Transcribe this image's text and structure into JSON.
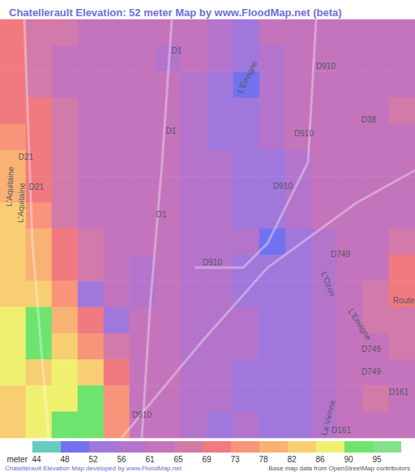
{
  "chart_data": {
    "type": "heatmap",
    "title": "Chatellerault Elevation: 52 meter Map by www.FloodMap.net (beta)",
    "tick_labels": false,
    "cells": [
      [
        70,
        66,
        66,
        62,
        62,
        62,
        62,
        62,
        58,
        53,
        62,
        62,
        62,
        62,
        62,
        62
      ],
      [
        70,
        66,
        62,
        62,
        62,
        62,
        58,
        62,
        58,
        53,
        58,
        62,
        62,
        62,
        62,
        62
      ],
      [
        70,
        66,
        62,
        62,
        62,
        62,
        62,
        58,
        53,
        50,
        58,
        62,
        62,
        62,
        62,
        62
      ],
      [
        70,
        70,
        66,
        62,
        62,
        62,
        62,
        58,
        53,
        53,
        58,
        62,
        62,
        62,
        62,
        66
      ],
      [
        74,
        70,
        66,
        62,
        62,
        62,
        62,
        58,
        53,
        53,
        58,
        62,
        62,
        62,
        62,
        62
      ],
      [
        78,
        70,
        66,
        62,
        62,
        62,
        62,
        58,
        58,
        53,
        53,
        58,
        62,
        62,
        62,
        62
      ],
      [
        79,
        70,
        66,
        62,
        62,
        62,
        62,
        58,
        58,
        53,
        53,
        58,
        62,
        62,
        62,
        62
      ],
      [
        82,
        74,
        66,
        62,
        62,
        62,
        62,
        58,
        58,
        53,
        53,
        58,
        62,
        62,
        62,
        62
      ],
      [
        82,
        78,
        70,
        66,
        62,
        62,
        62,
        58,
        58,
        58,
        50,
        53,
        58,
        62,
        62,
        66
      ],
      [
        82,
        79,
        70,
        66,
        62,
        58,
        62,
        58,
        58,
        53,
        53,
        53,
        58,
        62,
        62,
        70
      ],
      [
        83,
        82,
        74,
        53,
        62,
        58,
        62,
        58,
        58,
        53,
        53,
        53,
        58,
        62,
        66,
        70
      ],
      [
        86,
        90,
        79,
        70,
        53,
        62,
        62,
        58,
        58,
        58,
        53,
        53,
        58,
        62,
        66,
        66
      ],
      [
        86,
        90,
        82,
        74,
        66,
        62,
        62,
        58,
        58,
        58,
        53,
        53,
        58,
        62,
        62,
        66
      ],
      [
        86,
        83,
        86,
        82,
        70,
        62,
        62,
        58,
        58,
        53,
        53,
        53,
        58,
        62,
        62,
        62
      ],
      [
        83,
        86,
        86,
        90,
        74,
        62,
        62,
        58,
        58,
        53,
        53,
        53,
        58,
        62,
        66,
        62
      ],
      [
        83,
        86,
        90,
        90,
        74,
        62,
        62,
        58,
        53,
        58,
        53,
        53,
        58,
        62,
        62,
        62
      ]
    ],
    "colorbar": {
      "title": "meter",
      "ticks": [
        44,
        48,
        52,
        56,
        61,
        65,
        69,
        73,
        78,
        82,
        86,
        90,
        95
      ],
      "colors": [
        "#66ccc0",
        "#7272ee",
        "#a078dc",
        "#b474cc",
        "#c474bc",
        "#d27aaa",
        "#f07a80",
        "#f8947a",
        "#f8b274",
        "#f8ce72",
        "#f0f070",
        "#6ee46e",
        "#84e08a"
      ]
    },
    "labels": [
      "D1",
      "D1",
      "D1",
      "D910",
      "D910",
      "D910",
      "D910",
      "D910",
      "D21",
      "D21",
      "D38",
      "D749",
      "D749",
      "D749",
      "D161",
      "D161",
      "L'Aquitaine",
      "L'Aquitaine",
      "La Vienne",
      "L'Ozon",
      "L'Envigne",
      "L'Envigne",
      "Route"
    ],
    "footer": [
      "Chatellerault Elevation Map developed by www.FloodMap.net",
      "Base map data from OpenStreetMap contributors"
    ]
  }
}
